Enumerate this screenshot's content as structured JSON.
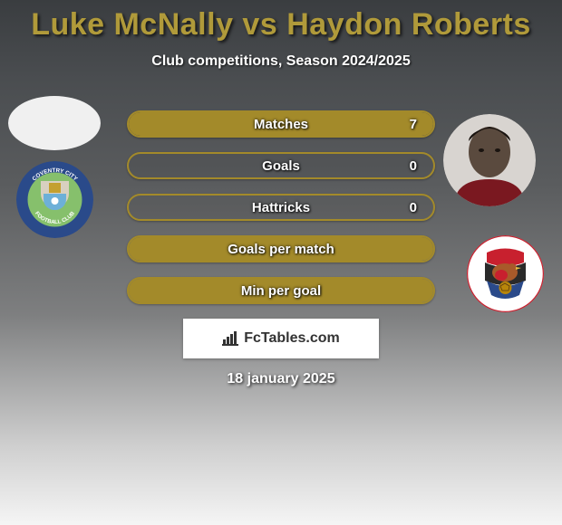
{
  "title": "Luke McNally vs Haydon Roberts",
  "subtitle": "Club competitions, Season 2024/2025",
  "title_color": "#b09a3a",
  "bar_border_color": "#a38a2a",
  "bar_fill_color": "#a38a2a",
  "stats": [
    {
      "label": "Matches",
      "value": "7",
      "fill_pct": 100
    },
    {
      "label": "Goals",
      "value": "0",
      "fill_pct": 0
    },
    {
      "label": "Hattricks",
      "value": "0",
      "fill_pct": 0
    },
    {
      "label": "Goals per match",
      "value": "",
      "fill_pct": 100
    },
    {
      "label": "Min per goal",
      "value": "",
      "fill_pct": 100
    }
  ],
  "left_player": {
    "photo_bg": "#f0f0f0"
  },
  "right_player": {
    "photo_bg": "#5a4a3e"
  },
  "left_club": {
    "ring": "#2a4a8a",
    "center": "#86c06c",
    "top": "#d8d0c0",
    "label_top": "COVENTRY CITY",
    "label_bot": "FOOTBALL CLUB"
  },
  "right_club": {
    "bg": "#ffffff",
    "top": "#c8202e",
    "mid": "#2a2a2a",
    "bot": "#2a4a8a",
    "ball": "#b8860b"
  },
  "branding": "FcTables.com",
  "date": "18 january 2025"
}
